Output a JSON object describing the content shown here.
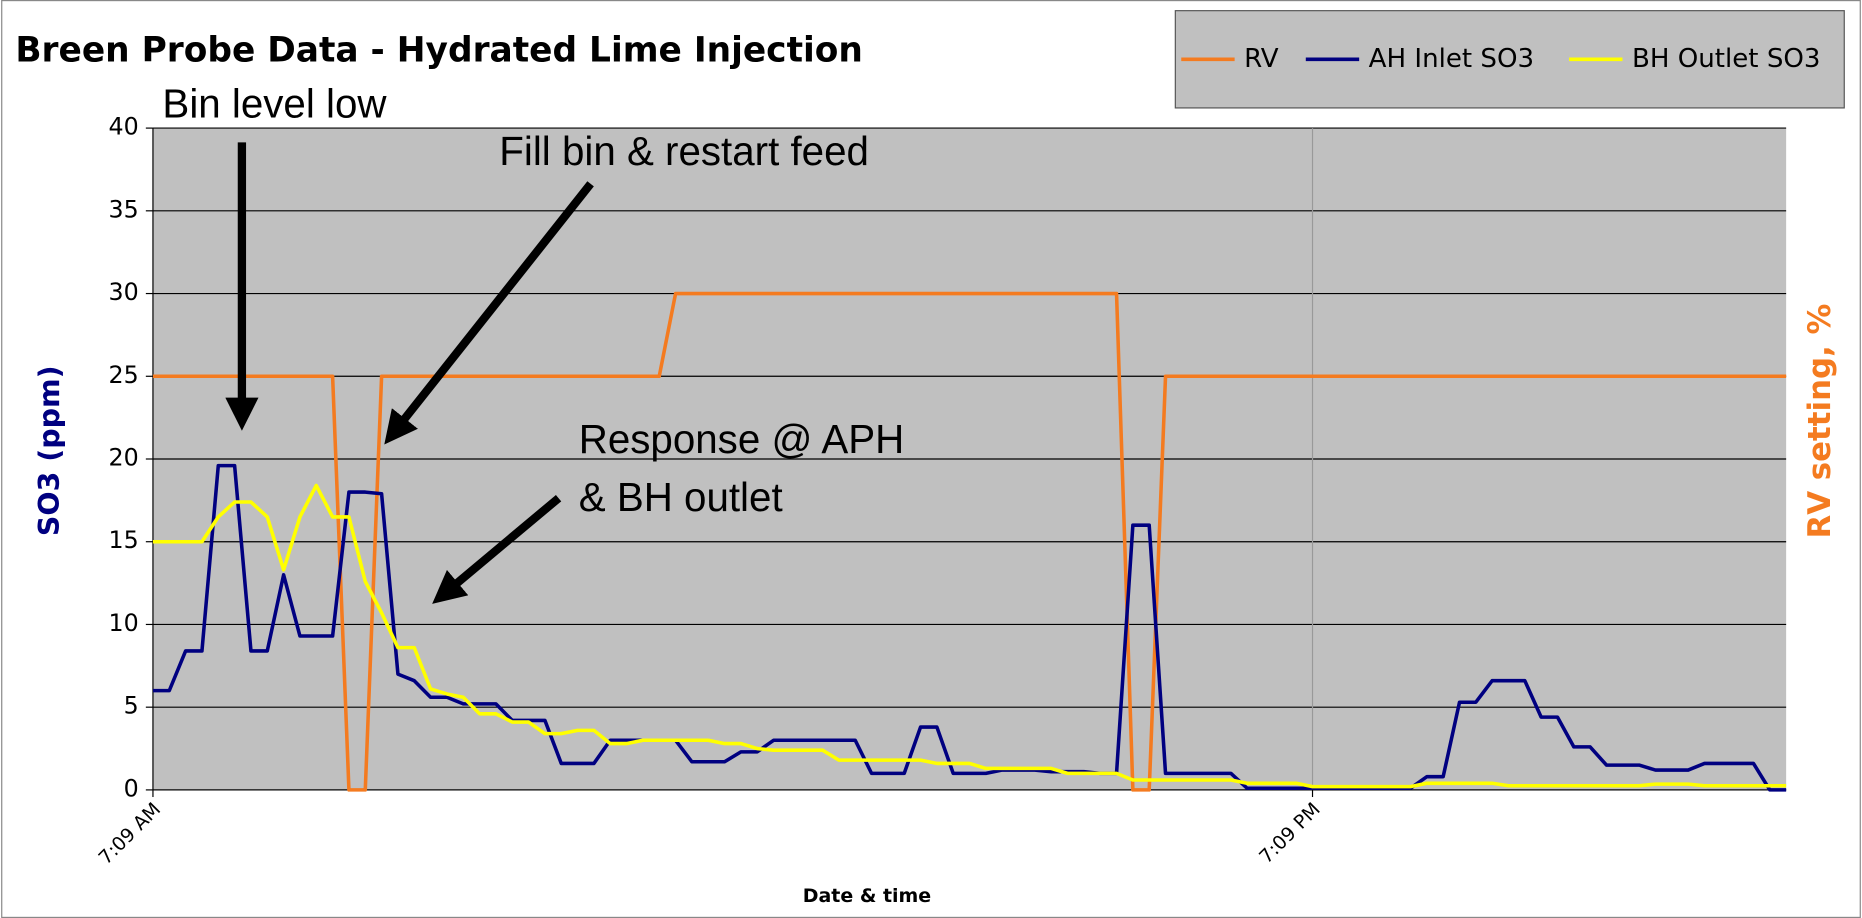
{
  "chart_data": {
    "type": "line",
    "title": "Breen Probe Data - Hydrated Lime Injection",
    "x_label": "Date & time",
    "y_label": "SO3 (ppm)",
    "y2_label": "RV setting, %",
    "annotations": [
      "Bin level low",
      "Fill bin & restart feed",
      "Response @ APH",
      "& BH outlet"
    ],
    "categories": [
      "7:09 AM",
      null,
      null,
      null,
      null,
      null,
      null,
      null,
      null,
      null,
      null,
      null,
      null,
      null,
      null,
      null,
      null,
      null,
      null,
      null,
      null,
      null,
      null,
      null,
      null,
      null,
      null,
      null,
      null,
      null,
      null,
      null,
      null,
      null,
      null,
      null,
      null,
      null,
      null,
      null,
      null,
      null,
      null,
      null,
      null,
      null,
      null,
      null,
      null,
      null,
      null,
      null,
      null,
      null,
      null,
      null,
      null,
      null,
      null,
      null,
      null,
      null,
      null,
      null,
      null,
      null,
      null,
      null,
      null,
      null,
      null,
      "7:09 PM",
      null,
      null,
      null,
      null,
      null,
      null,
      null,
      null,
      null,
      null,
      null,
      null,
      null,
      null,
      null,
      null,
      null,
      null,
      null,
      null,
      null,
      null,
      null,
      null,
      null,
      null,
      null,
      null,
      null
    ],
    "series": [
      {
        "name": "RV",
        "color": "#f47b20",
        "values": [
          25,
          25,
          25,
          25,
          25,
          25,
          25,
          25,
          25,
          25,
          25,
          25,
          0,
          0,
          25,
          25,
          25,
          25,
          25,
          25,
          25,
          25,
          25,
          25,
          25,
          25,
          25,
          25,
          25,
          25,
          25,
          25,
          30,
          30,
          30,
          30,
          30,
          30,
          30,
          30,
          30,
          30,
          30,
          30,
          30,
          30,
          30,
          30,
          30,
          30,
          30,
          30,
          30,
          30,
          30,
          30,
          30,
          30,
          30,
          30,
          0,
          0,
          25,
          25,
          25,
          25,
          25,
          25,
          25,
          25,
          25,
          25,
          25,
          25,
          25,
          25,
          25,
          25,
          25,
          25,
          25,
          25,
          25,
          25,
          25,
          25,
          25,
          25,
          25,
          25,
          25,
          25,
          25,
          25,
          25,
          25,
          25,
          25,
          25,
          25,
          25
        ]
      },
      {
        "name": "AH Inlet SO3",
        "color": "#000080",
        "values": [
          6,
          6,
          8.4,
          8.4,
          19.6,
          19.6,
          8.4,
          8.4,
          13,
          9.3,
          9.3,
          9.3,
          18,
          18,
          17.9,
          7,
          6.6,
          5.6,
          5.6,
          5.2,
          5.2,
          5.2,
          4.2,
          4.2,
          4.2,
          1.6,
          1.6,
          1.6,
          3,
          3,
          3,
          3,
          3,
          1.7,
          1.7,
          1.7,
          2.3,
          2.3,
          3,
          3,
          3,
          3,
          3,
          3,
          1,
          1,
          1,
          3.8,
          3.8,
          1,
          1,
          1,
          1.2,
          1.2,
          1.2,
          1.1,
          1.1,
          1.1,
          1,
          1,
          16,
          16,
          1,
          1,
          1,
          1,
          1,
          0.1,
          0.1,
          0.1,
          0.1,
          0.1,
          0.1,
          0.1,
          0.1,
          0.1,
          0.1,
          0.1,
          0.8,
          0.8,
          5.3,
          5.3,
          6.6,
          6.6,
          6.6,
          4.4,
          4.4,
          2.6,
          2.6,
          1.5,
          1.5,
          1.5,
          1.2,
          1.2,
          1.2,
          1.6,
          1.6,
          1.6,
          1.6,
          0,
          0
        ]
      },
      {
        "name": "BH Outlet SO3",
        "color": "#ffff00",
        "values": [
          15,
          15,
          15,
          15,
          16.5,
          17.4,
          17.4,
          16.5,
          13.3,
          16.5,
          18.4,
          16.5,
          16.5,
          12.6,
          10.7,
          8.6,
          8.6,
          6.1,
          5.8,
          5.6,
          4.6,
          4.6,
          4.1,
          4.1,
          3.4,
          3.4,
          3.6,
          3.6,
          2.8,
          2.8,
          3,
          3,
          3,
          3,
          3,
          2.8,
          2.8,
          2.5,
          2.4,
          2.4,
          2.4,
          2.4,
          1.8,
          1.8,
          1.8,
          1.8,
          1.8,
          1.8,
          1.6,
          1.6,
          1.6,
          1.3,
          1.3,
          1.3,
          1.3,
          1.3,
          1,
          1,
          1,
          1,
          0.6,
          0.6,
          0.6,
          0.6,
          0.6,
          0.6,
          0.6,
          0.4,
          0.4,
          0.4,
          0.4,
          0.2,
          0.2,
          0.2,
          0.2,
          0.2,
          0.2,
          0.2,
          0.4,
          0.4,
          0.4,
          0.4,
          0.4,
          0.25,
          0.25,
          0.25,
          0.25,
          0.25,
          0.25,
          0.25,
          0.25,
          0.25,
          0.35,
          0.35,
          0.35,
          0.25,
          0.25,
          0.25,
          0.25,
          0.25,
          0.25
        ]
      }
    ],
    "ylim": [
      0,
      40
    ],
    "yticks": [
      0,
      5,
      10,
      15,
      20,
      25,
      30,
      35,
      40
    ],
    "grid": true,
    "legend": "top-right"
  }
}
